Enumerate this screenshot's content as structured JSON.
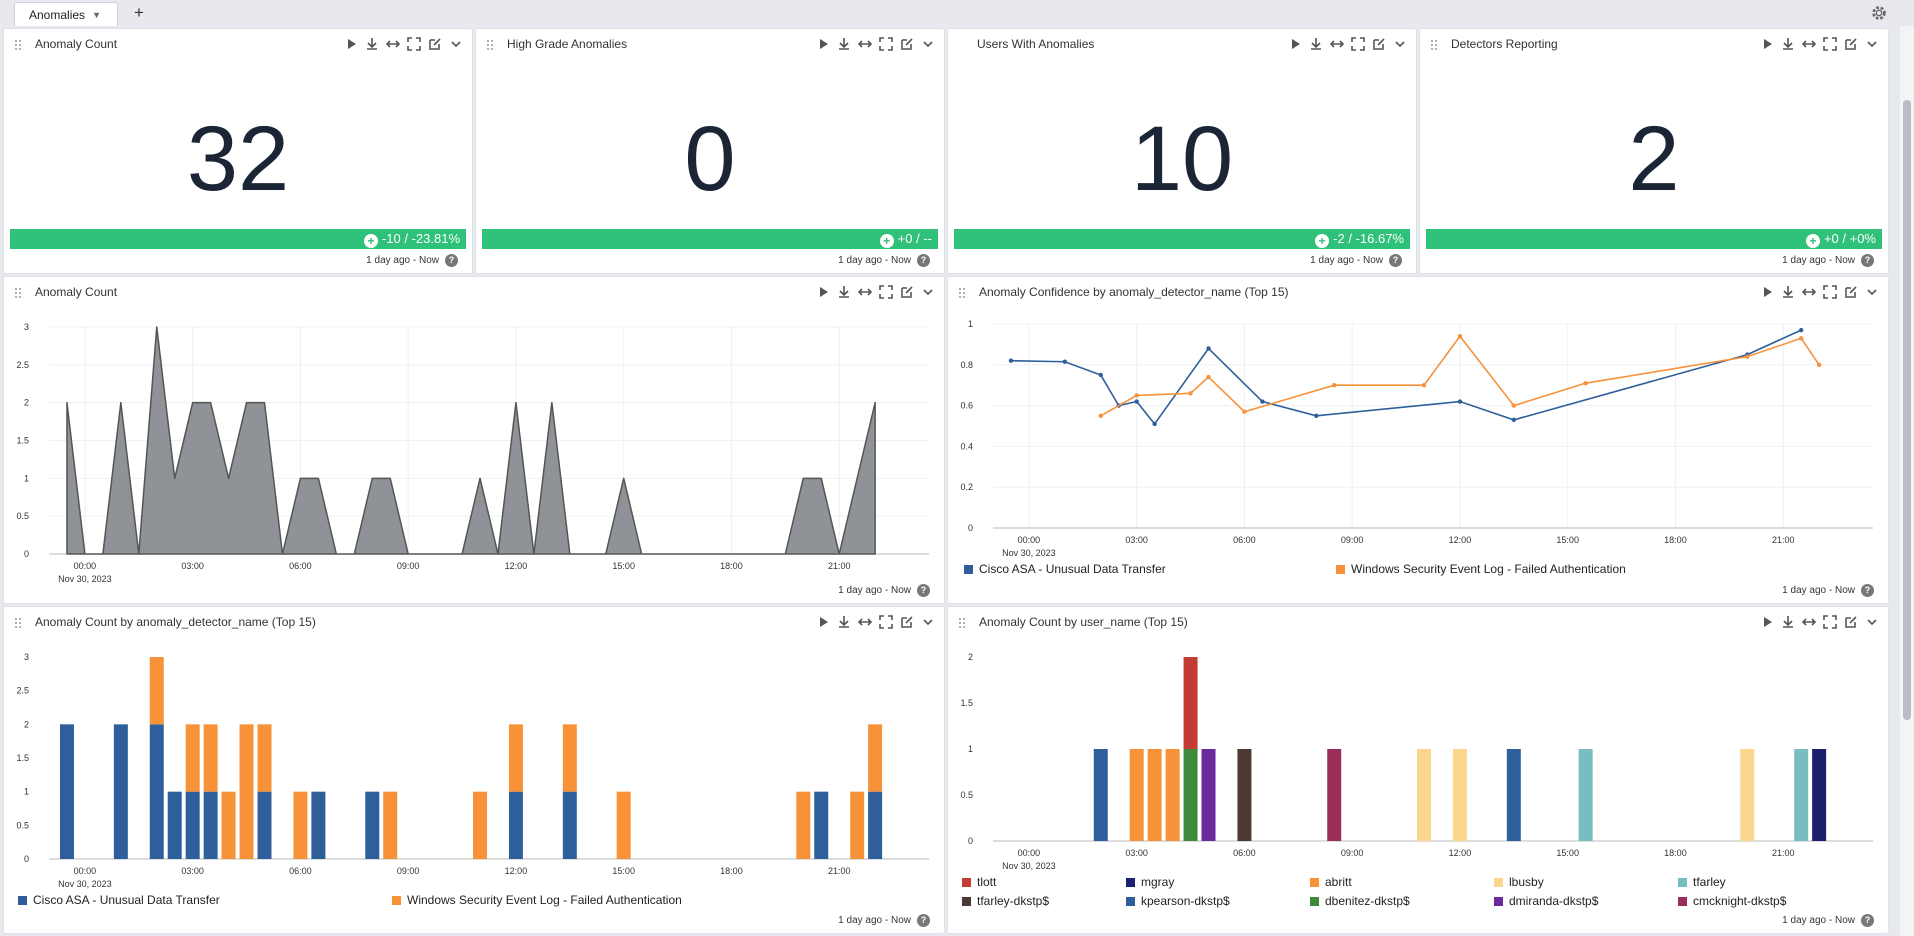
{
  "tabs": [
    {
      "label": "Anomalies"
    }
  ],
  "add_tab_label": "+",
  "colors": {
    "accent_green": "#2fc07a",
    "blue": "#2f5f9b",
    "orange": "#f79239",
    "gray_area": "#8f9297"
  },
  "stats": [
    {
      "title": "Anomaly Count",
      "value": "32",
      "delta": "-10 / -23.81%",
      "time": "1 day ago - Now"
    },
    {
      "title": "High Grade Anomalies",
      "value": "0",
      "delta": "+0 / --",
      "time": "1 day ago - Now"
    },
    {
      "title": "Users With Anomalies",
      "value": "10",
      "delta": "-2 / -16.67%",
      "time": "1 day ago - Now"
    },
    {
      "title": "Detectors Reporting",
      "value": "2",
      "delta": "+0 / +0%",
      "time": "1 day ago - Now"
    }
  ],
  "panels": {
    "area": {
      "title": "Anomaly Count",
      "time": "1 day ago - Now"
    },
    "confidence": {
      "title": "Anomaly Confidence by anomaly_detector_name (Top 15)",
      "time": "1 day ago - Now"
    },
    "detector": {
      "title": "Anomaly Count by anomaly_detector_name (Top 15)",
      "time": "1 day ago - Now"
    },
    "user": {
      "title": "Anomaly Count by user_name (Top 15)",
      "time": "1 day ago - Now"
    }
  },
  "chart_data": [
    {
      "id": "area",
      "type": "area",
      "title": "Anomaly Count",
      "x_ticks": [
        "00:00",
        "03:00",
        "06:00",
        "09:00",
        "12:00",
        "15:00",
        "18:00",
        "21:00"
      ],
      "x_date": "Nov 30, 2023",
      "y_ticks": [
        "0",
        "0.5",
        "1",
        "1.5",
        "2",
        "2.5",
        "3"
      ],
      "ylim": [
        0,
        3
      ],
      "x_hours": [
        -0.5,
        0,
        0.5,
        1,
        1.5,
        2,
        2.5,
        3,
        3.5,
        4,
        4.5,
        5,
        5.5,
        6,
        6.5,
        7,
        7.5,
        8,
        8.5,
        9,
        9.5,
        10,
        10.5,
        11,
        11.5,
        12,
        12.5,
        13,
        13.5,
        14,
        14.5,
        15,
        15.5,
        16,
        16.5,
        17,
        17.5,
        18,
        18.5,
        19,
        19.5,
        20,
        20.5,
        21,
        21.5,
        22
      ],
      "values": [
        2,
        0,
        0,
        2,
        0,
        3,
        1,
        2,
        2,
        1,
        2,
        2,
        0,
        1,
        1,
        0,
        0,
        1,
        1,
        0,
        0,
        0,
        0,
        1,
        0,
        2,
        0,
        2,
        0,
        0,
        0,
        1,
        0,
        0,
        0,
        0,
        0,
        0,
        0,
        0,
        0,
        1,
        1,
        0,
        1,
        2
      ]
    },
    {
      "id": "confidence",
      "type": "line",
      "title": "Anomaly Confidence by anomaly_detector_name (Top 15)",
      "x_ticks": [
        "00:00",
        "03:00",
        "06:00",
        "09:00",
        "12:00",
        "15:00",
        "18:00",
        "21:00"
      ],
      "x_date": "Nov 30, 2023",
      "y_ticks": [
        "0",
        "0.2",
        "0.4",
        "0.6",
        "0.8",
        "1"
      ],
      "ylim": [
        0,
        1
      ],
      "series": [
        {
          "name": "Cisco ASA - Unusual Data Transfer",
          "color": "#2f5f9b",
          "x": [
            -0.5,
            1,
            2,
            2.5,
            3,
            3.5,
            5,
            6.5,
            8,
            12,
            13.5,
            20,
            21.5
          ],
          "y": [
            0.82,
            0.815,
            0.75,
            0.6,
            0.62,
            0.51,
            0.88,
            0.62,
            0.55,
            0.62,
            0.53,
            0.85,
            0.97
          ]
        },
        {
          "name": "Windows Security Event Log - Failed Authentication",
          "color": "#f79239",
          "x": [
            2,
            3,
            4.5,
            5,
            6,
            8.5,
            11,
            12,
            13.5,
            15.5,
            20,
            21.5,
            22
          ],
          "y": [
            0.55,
            0.65,
            0.66,
            0.74,
            0.57,
            0.7,
            0.7,
            0.94,
            0.6,
            0.71,
            0.84,
            0.93,
            0.8
          ]
        }
      ]
    },
    {
      "id": "detector",
      "type": "bar",
      "title": "Anomaly Count by anomaly_detector_name (Top 15)",
      "x_ticks": [
        "00:00",
        "03:00",
        "06:00",
        "09:00",
        "12:00",
        "15:00",
        "18:00",
        "21:00"
      ],
      "x_date": "Nov 30, 2023",
      "y_ticks": [
        "0",
        "0.5",
        "1",
        "1.5",
        "2",
        "2.5",
        "3"
      ],
      "ylim": [
        0,
        3
      ],
      "bar_hours": [
        -0.5,
        1,
        2,
        2.5,
        3,
        3.5,
        4,
        4.5,
        5,
        6,
        6.5,
        8,
        8.5,
        11,
        12,
        13.5,
        15,
        20,
        20.5,
        21.5,
        22
      ],
      "series": [
        {
          "name": "Cisco ASA - Unusual Data Transfer",
          "color": "#2f5f9b",
          "values": [
            2,
            2,
            2,
            1,
            1,
            1,
            0,
            0,
            1,
            0,
            1,
            1,
            0,
            0,
            1,
            1,
            0,
            0,
            1,
            0,
            1
          ]
        },
        {
          "name": "Windows Security Event Log - Failed Authentication",
          "color": "#f79239",
          "values": [
            0,
            0,
            1,
            0,
            1,
            1,
            1,
            2,
            1,
            1,
            0,
            0,
            1,
            1,
            1,
            1,
            1,
            1,
            0,
            1,
            1
          ]
        }
      ]
    },
    {
      "id": "user",
      "type": "bar",
      "title": "Anomaly Count by user_name (Top 15)",
      "x_ticks": [
        "00:00",
        "03:00",
        "06:00",
        "09:00",
        "12:00",
        "15:00",
        "18:00",
        "21:00"
      ],
      "x_date": "Nov 30, 2023",
      "y_ticks": [
        "0",
        "0.5",
        "1",
        "1.5",
        "2"
      ],
      "ylim": [
        0,
        2
      ],
      "bars": [
        {
          "hour": 2,
          "user": "kpearson-dkstp$",
          "value": 1
        },
        {
          "hour": 3,
          "user": "abritt",
          "value": 1
        },
        {
          "hour": 3.5,
          "user": "abritt",
          "value": 1
        },
        {
          "hour": 4,
          "user": "abritt",
          "value": 1
        },
        {
          "hour": 4.5,
          "user": "dbenitez-dkstp$",
          "value": 1,
          "stack": [
            {
              "user": "tlott",
              "value": 1
            }
          ]
        },
        {
          "hour": 5,
          "user": "dmiranda-dkstp$",
          "value": 1
        },
        {
          "hour": 6,
          "user": "tfarley-dkstp$",
          "value": 1
        },
        {
          "hour": 8.5,
          "user": "cmcknight-dkstp$",
          "value": 1
        },
        {
          "hour": 11,
          "user": "lbusby",
          "value": 1
        },
        {
          "hour": 12,
          "user": "lbusby",
          "value": 1
        },
        {
          "hour": 13.5,
          "user": "kpearson-dkstp$",
          "value": 1
        },
        {
          "hour": 15.5,
          "user": "tfarley",
          "value": 1
        },
        {
          "hour": 20,
          "user": "lbusby",
          "value": 1
        },
        {
          "hour": 21.5,
          "user": "tfarley",
          "value": 1
        },
        {
          "hour": 22,
          "user": "mgray",
          "value": 1
        }
      ],
      "series": [
        {
          "name": "tlott",
          "color": "#c23b35"
        },
        {
          "name": "mgray",
          "color": "#1b1f6e"
        },
        {
          "name": "abritt",
          "color": "#f79239"
        },
        {
          "name": "lbusby",
          "color": "#fbd68d"
        },
        {
          "name": "tfarley",
          "color": "#78bdc2"
        },
        {
          "name": "tfarley-dkstp$",
          "color": "#4a3a33"
        },
        {
          "name": "kpearson-dkstp$",
          "color": "#2f5f9b"
        },
        {
          "name": "dbenitez-dkstp$",
          "color": "#3f8a3a"
        },
        {
          "name": "dmiranda-dkstp$",
          "color": "#6a2a99"
        },
        {
          "name": "cmcknight-dkstp$",
          "color": "#9b2d5b"
        }
      ]
    }
  ]
}
